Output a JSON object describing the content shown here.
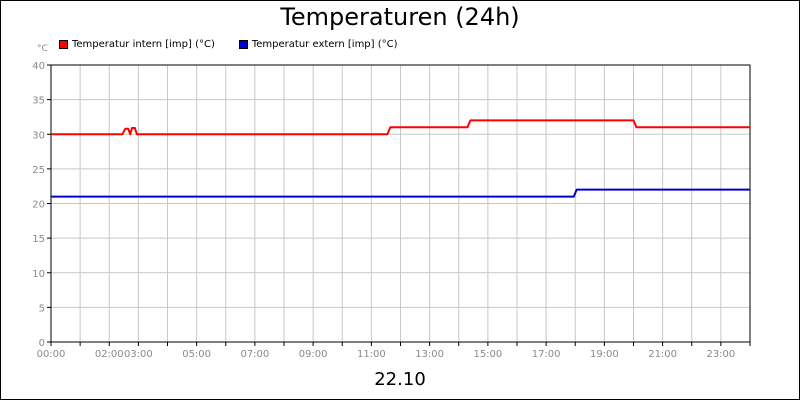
{
  "chart_data": {
    "type": "line",
    "title": "Temperaturen (24h)",
    "xlabel": "22.10",
    "ylabel": "°C",
    "ylim": [
      0,
      40
    ],
    "xlim": [
      0,
      24
    ],
    "yticks": [
      0,
      5,
      10,
      15,
      20,
      25,
      30,
      35,
      40
    ],
    "xticks": [
      {
        "hour": 0,
        "label": "00:00"
      },
      {
        "hour": 2,
        "label": "02:00"
      },
      {
        "hour": 3,
        "label": "03:00"
      },
      {
        "hour": 5,
        "label": "05:00"
      },
      {
        "hour": 7,
        "label": "07:00"
      },
      {
        "hour": 9,
        "label": "09:00"
      },
      {
        "hour": 11,
        "label": "11:00"
      },
      {
        "hour": 13,
        "label": "13:00"
      },
      {
        "hour": 15,
        "label": "15:00"
      },
      {
        "hour": 17,
        "label": "17:00"
      },
      {
        "hour": 19,
        "label": "19:00"
      },
      {
        "hour": 21,
        "label": "21:00"
      },
      {
        "hour": 23,
        "label": "23:00"
      }
    ],
    "grid": true,
    "legend_position": "top-left",
    "series": [
      {
        "name": "Temperatur intern [imp] (°C)",
        "color": "#ff0000",
        "points": [
          [
            0,
            30
          ],
          [
            2.45,
            30
          ],
          [
            2.55,
            30.8
          ],
          [
            2.65,
            30.8
          ],
          [
            2.72,
            30
          ],
          [
            2.78,
            30.9
          ],
          [
            2.88,
            30.9
          ],
          [
            2.95,
            30
          ],
          [
            11.55,
            30
          ],
          [
            11.65,
            31
          ],
          [
            14.3,
            31
          ],
          [
            14.4,
            32
          ],
          [
            20.0,
            32
          ],
          [
            20.1,
            31
          ],
          [
            24,
            31
          ]
        ]
      },
      {
        "name": "Temperatur extern [imp] (°C)",
        "color": "#0000cc",
        "points": [
          [
            0,
            21
          ],
          [
            17.95,
            21
          ],
          [
            18.05,
            22
          ],
          [
            24,
            22
          ]
        ]
      }
    ]
  }
}
